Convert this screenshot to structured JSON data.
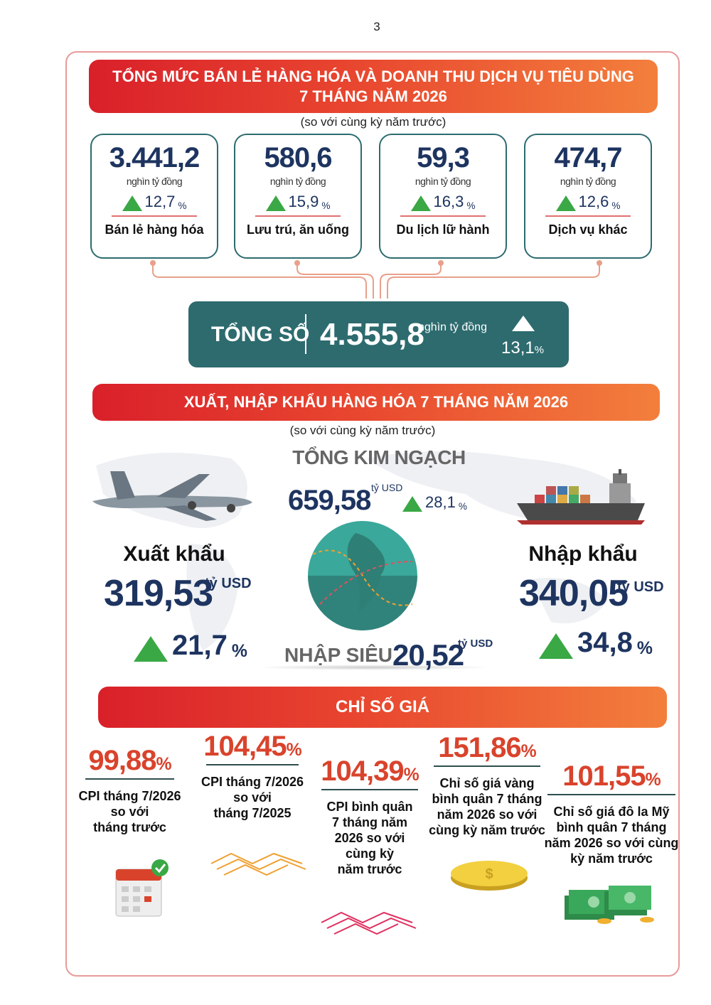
{
  "page_number": "3",
  "pct": "%",
  "retail": {
    "title": [
      "TỔNG MỨC BÁN LẺ HÀNG HÓA VÀ DOANH THU DỊCH VỤ TIÊU DÙNG",
      "7 THÁNG NĂM 2026"
    ],
    "subtitle": "(so với cùng kỳ năm trước)",
    "items": [
      {
        "value": "3.441,2",
        "unit": "nghìn tỷ đồng",
        "change": "12,7",
        "label": "Bán lẻ hàng hóa"
      },
      {
        "value": "580,6",
        "unit": "nghìn tỷ đồng",
        "change": "15,9",
        "label": "Lưu trú, ăn uống"
      },
      {
        "value": "59,3",
        "unit": "nghìn tỷ đồng",
        "change": "16,3",
        "label": "Du lịch lữ hành"
      },
      {
        "value": "474,7",
        "unit": "nghìn tỷ đồng",
        "change": "12,6",
        "label": "Dịch vụ khác"
      }
    ],
    "total": {
      "label": "TỔNG SỐ",
      "value": "4.555,8",
      "unit": "nghìn tỷ đồng",
      "change": "13,1"
    }
  },
  "trade": {
    "title": "XUẤT, NHẬP KHẨU HÀNG HÓA 7 THÁNG NĂM 2026",
    "subtitle": "(so với cùng kỳ năm trước)",
    "total": {
      "label": "TỔNG KIM NGẠCH",
      "value": "659,58",
      "unit": "tỷ USD",
      "change": "28,1"
    },
    "export": {
      "label": "Xuất khẩu",
      "value": "319,53",
      "unit": "tỷ USD",
      "change": "21,7"
    },
    "import": {
      "label": "Nhập khẩu",
      "value": "340,05",
      "unit": "tỷ USD",
      "change": "34,8"
    },
    "surplus": {
      "label": "NHẬP SIÊU",
      "value": "20,52",
      "unit": "tỷ USD"
    }
  },
  "prices": {
    "title": "CHỈ SỐ GIÁ",
    "items": [
      {
        "value": "99,88",
        "label": [
          "CPI tháng 7/2026",
          "so với",
          "tháng trước"
        ]
      },
      {
        "value": "104,45",
        "label": [
          "CPI tháng 7/2026",
          "so với",
          "tháng 7/2025"
        ]
      },
      {
        "value": "104,39",
        "label": [
          "CPI bình quân",
          "7 tháng năm",
          "2026 so với",
          "cùng kỳ",
          "năm trước"
        ]
      },
      {
        "value": "151,86",
        "label": [
          "Chỉ số giá vàng",
          "bình quân 7 tháng",
          "năm 2026 so với",
          "cùng kỳ năm trước"
        ]
      },
      {
        "value": "101,55",
        "label": [
          "Chỉ số giá đô la Mỹ",
          "bình quân 7 tháng",
          "năm 2026 so với cùng",
          "kỳ năm trước"
        ]
      }
    ]
  }
}
